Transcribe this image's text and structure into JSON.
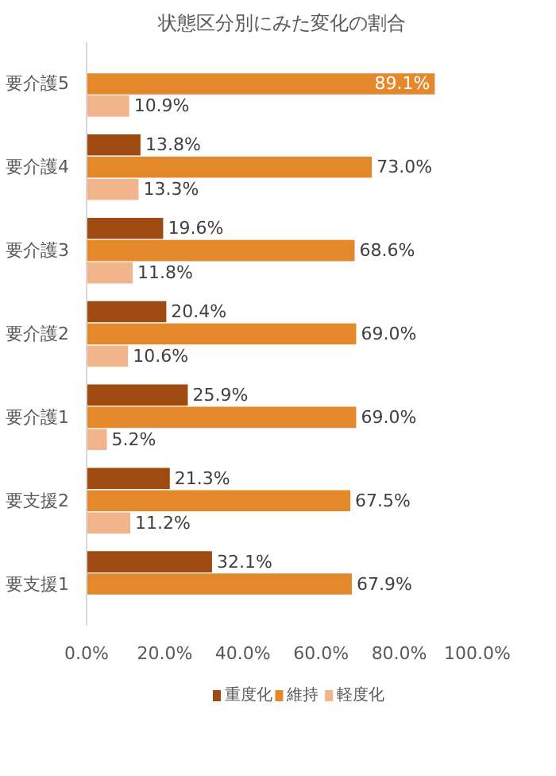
{
  "chart_data": {
    "type": "bar",
    "orientation": "horizontal",
    "title": "状態区分別にみた変化の割合",
    "categories": [
      "要介護5",
      "要介護4",
      "要介護3",
      "要介護2",
      "要介護1",
      "要支援2",
      "要支援1"
    ],
    "series": [
      {
        "name": "重度化",
        "color": "#9e4a10",
        "values": [
          null,
          13.8,
          19.6,
          20.4,
          25.9,
          21.3,
          32.1
        ],
        "value_labels": [
          null,
          "13.8%",
          "19.6%",
          "20.4%",
          "25.9%",
          "21.3%",
          "32.1%"
        ]
      },
      {
        "name": "維持",
        "color": "#e3892c",
        "values": [
          89.1,
          73.0,
          68.6,
          69.0,
          69.0,
          67.5,
          67.9
        ],
        "value_labels": [
          "89.1%",
          "73.0%",
          "68.6%",
          "69.0%",
          "69.0%",
          "67.5%",
          "67.9%"
        ]
      },
      {
        "name": "軽度化",
        "color": "#f1b48b",
        "values": [
          10.9,
          13.3,
          11.8,
          10.6,
          5.2,
          11.2,
          null
        ],
        "value_labels": [
          "10.9%",
          "13.3%",
          "11.8%",
          "10.6%",
          "5.2%",
          "11.2%",
          null
        ]
      }
    ],
    "xlim": [
      0,
      100
    ],
    "xticks": [
      {
        "value": 0,
        "label": "0.0%"
      },
      {
        "value": 20,
        "label": "20.0%"
      },
      {
        "value": 40,
        "label": "40.0%"
      },
      {
        "value": 60,
        "label": "60.0%"
      },
      {
        "value": 80,
        "label": "80.0%"
      },
      {
        "value": 100,
        "label": "100.0%"
      }
    ],
    "grid": false,
    "legend": "bottom"
  }
}
